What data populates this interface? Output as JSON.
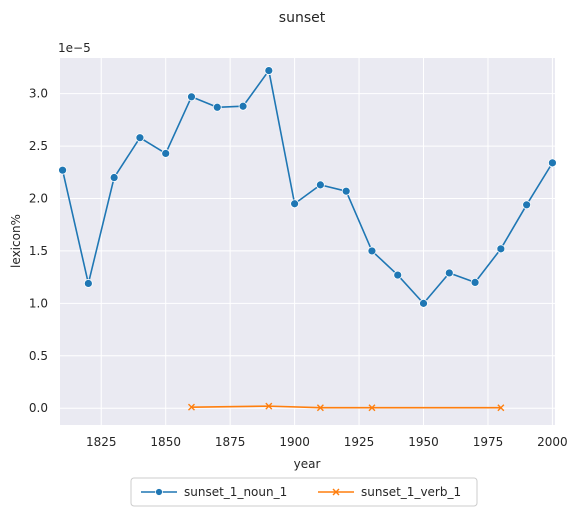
{
  "chart_data": {
    "type": "line",
    "title": "sunset",
    "xlabel": "year",
    "ylabel": "lexicon%",
    "y_scale_note": "1e−5",
    "xlim": [
      1809,
      2001
    ],
    "ylim": [
      -0.16,
      3.34
    ],
    "x_ticks": [
      1825,
      1850,
      1875,
      1900,
      1925,
      1950,
      1975,
      2000
    ],
    "y_ticks": [
      0.0,
      0.5,
      1.0,
      1.5,
      2.0,
      2.5,
      3.0
    ],
    "y_tick_labels": [
      "0.0",
      "0.5",
      "1.0",
      "1.5",
      "2.0",
      "2.5",
      "3.0"
    ],
    "grid": true,
    "legend_position": "bottom-center",
    "series": [
      {
        "name": "sunset_1_noun_1",
        "color": "#1f77b4",
        "marker": "circle",
        "x": [
          1810,
          1820,
          1830,
          1840,
          1850,
          1860,
          1870,
          1880,
          1890,
          1900,
          1910,
          1920,
          1930,
          1940,
          1950,
          1960,
          1970,
          1980,
          1990,
          2000
        ],
        "y": [
          2.27,
          1.19,
          2.2,
          2.58,
          2.43,
          2.97,
          2.87,
          2.88,
          3.22,
          1.95,
          2.13,
          2.07,
          1.5,
          1.27,
          1.0,
          1.29,
          1.2,
          1.52,
          1.94,
          2.34
        ]
      },
      {
        "name": "sunset_1_verb_1",
        "color": "#ff7f0e",
        "marker": "x",
        "x": [
          1860,
          1890,
          1910,
          1930,
          1980
        ],
        "y": [
          0.01,
          0.02,
          0.005,
          0.005,
          0.005
        ]
      }
    ]
  }
}
